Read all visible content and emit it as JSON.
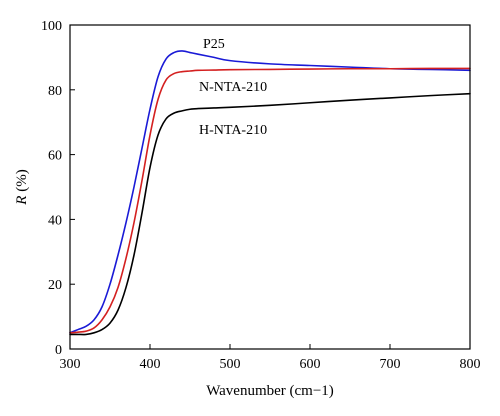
{
  "chart_data": {
    "type": "line",
    "xlabel": "Wavenumber (cm−1)",
    "ylabel": "R (%)",
    "ylabel_var": "R",
    "ylabel_unit": " (%)",
    "xlim": [
      300,
      800
    ],
    "ylim": [
      0,
      100
    ],
    "xticks": [
      300,
      400,
      500,
      600,
      700,
      800
    ],
    "yticks": [
      0,
      20,
      40,
      60,
      80,
      100
    ],
    "grid": false,
    "legend": "inline labels",
    "series": [
      {
        "name": "P25",
        "color": "#1a1ad6",
        "x": [
          300,
          310,
          320,
          330,
          340,
          350,
          360,
          370,
          380,
          390,
          400,
          410,
          420,
          430,
          440,
          450,
          460,
          480,
          500,
          550,
          600,
          650,
          700,
          750,
          800
        ],
        "y": [
          5,
          6,
          7,
          9,
          13,
          20,
          29,
          39,
          50,
          62,
          74,
          84,
          89.5,
          91.5,
          92,
          91.5,
          91,
          90,
          89,
          88,
          87.5,
          87,
          86.5,
          86.3,
          86
        ]
      },
      {
        "name": "N-NTA-210",
        "color": "#d42020",
        "x": [
          300,
          310,
          320,
          330,
          340,
          350,
          360,
          370,
          380,
          390,
          400,
          410,
          420,
          430,
          440,
          450,
          460,
          480,
          500,
          550,
          600,
          650,
          700,
          750,
          800
        ],
        "y": [
          5,
          5.2,
          5.5,
          6.5,
          9,
          13,
          19,
          28,
          39,
          52,
          66,
          77,
          83,
          85,
          85.6,
          85.8,
          86,
          86.1,
          86.2,
          86.3,
          86.4,
          86.5,
          86.5,
          86.6,
          86.6
        ]
      },
      {
        "name": "H-NTA-210",
        "color": "#000000",
        "x": [
          300,
          310,
          320,
          330,
          340,
          350,
          360,
          370,
          380,
          390,
          400,
          410,
          420,
          430,
          440,
          450,
          460,
          480,
          500,
          550,
          600,
          650,
          700,
          750,
          800
        ],
        "y": [
          4.5,
          4.5,
          4.5,
          5,
          6,
          8,
          12,
          19,
          29,
          42,
          56,
          66,
          71,
          72.8,
          73.5,
          74,
          74.2,
          74.4,
          74.6,
          75.2,
          76,
          76.8,
          77.5,
          78.2,
          78.8
        ]
      }
    ]
  }
}
